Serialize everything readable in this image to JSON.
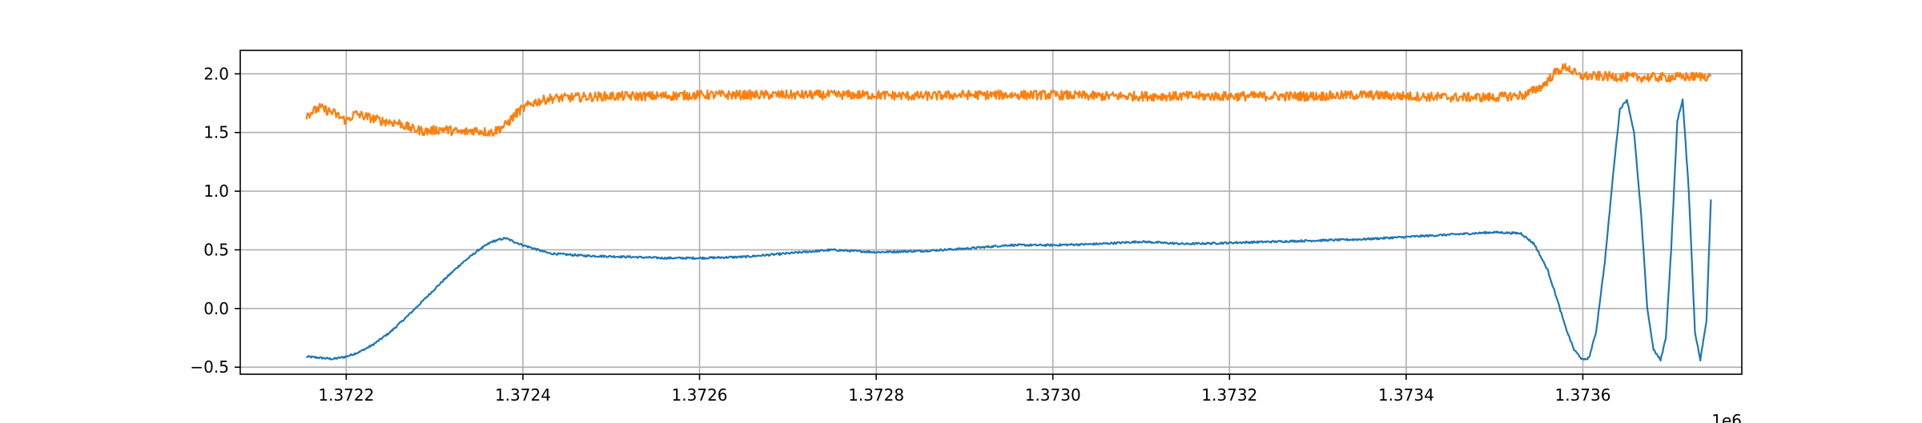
{
  "colors": {
    "series_1": "#1f77b4",
    "series_2": "#ff7f0e",
    "grid": "#b0b0b0",
    "axes": "#000000",
    "background": "#ffffff"
  },
  "chart_data": {
    "type": "line",
    "title": "",
    "xlabel": "",
    "ylabel": "",
    "x_offset_label": "1e6",
    "xlim": [
      1372080,
      1373780
    ],
    "ylim": [
      -0.56,
      2.2
    ],
    "grid": true,
    "legend": "none",
    "x_ticks": [
      1372200,
      1372400,
      1372600,
      1372800,
      1373000,
      1373200,
      1373400,
      1373600
    ],
    "x_tick_labels": [
      "1.3722",
      "1.3724",
      "1.3726",
      "1.3728",
      "1.3730",
      "1.3732",
      "1.3734",
      "1.3736"
    ],
    "y_ticks": [
      -0.5,
      0.0,
      0.5,
      1.0,
      1.5,
      2.0
    ],
    "y_tick_labels": [
      "−0.5",
      "0.0",
      "0.5",
      "1.0",
      "1.5",
      "2.0"
    ],
    "series": [
      {
        "color": "#1f77b4",
        "noise": 0.008,
        "x": [
          1372155,
          1372170,
          1372185,
          1372200,
          1372215,
          1372230,
          1372250,
          1372270,
          1372290,
          1372310,
          1372330,
          1372350,
          1372365,
          1372380,
          1372400,
          1372430,
          1372470,
          1372520,
          1372560,
          1372600,
          1372650,
          1372700,
          1372750,
          1372800,
          1372850,
          1372900,
          1372950,
          1373000,
          1373050,
          1373100,
          1373150,
          1373200,
          1373250,
          1373300,
          1373350,
          1373400,
          1373450,
          1373500,
          1373530,
          1373545,
          1373560,
          1373570,
          1373580,
          1373590,
          1373600,
          1373607,
          1373615,
          1373625,
          1373635,
          1373642,
          1373650,
          1373658,
          1373666,
          1373673,
          1373680,
          1373688,
          1373694,
          1373700,
          1373707,
          1373713,
          1373720,
          1373727,
          1373733,
          1373740,
          1373745
        ],
        "y": [
          -0.41,
          -0.42,
          -0.43,
          -0.41,
          -0.37,
          -0.31,
          -0.2,
          -0.06,
          0.09,
          0.24,
          0.38,
          0.5,
          0.57,
          0.6,
          0.54,
          0.47,
          0.45,
          0.44,
          0.43,
          0.43,
          0.44,
          0.47,
          0.5,
          0.48,
          0.49,
          0.51,
          0.54,
          0.54,
          0.55,
          0.57,
          0.55,
          0.56,
          0.57,
          0.58,
          0.59,
          0.61,
          0.63,
          0.65,
          0.64,
          0.55,
          0.33,
          0.1,
          -0.15,
          -0.35,
          -0.44,
          -0.42,
          -0.2,
          0.4,
          1.2,
          1.7,
          1.78,
          1.5,
          0.8,
          0.0,
          -0.35,
          -0.44,
          -0.25,
          0.5,
          1.6,
          1.78,
          1.0,
          -0.2,
          -0.44,
          -0.1,
          0.93
        ]
      },
      {
        "color": "#ff7f0e",
        "noise": 0.04,
        "x": [
          1372155,
          1372170,
          1372185,
          1372200,
          1372210,
          1372225,
          1372240,
          1372260,
          1372275,
          1372290,
          1372310,
          1372330,
          1372345,
          1372365,
          1372380,
          1372395,
          1372410,
          1372430,
          1372460,
          1372500,
          1372550,
          1372600,
          1372650,
          1372700,
          1372750,
          1372800,
          1372850,
          1372900,
          1372950,
          1373000,
          1373050,
          1373100,
          1373150,
          1373200,
          1373250,
          1373300,
          1373350,
          1373400,
          1373450,
          1373500,
          1373535,
          1373555,
          1373570,
          1373582,
          1373595,
          1373620,
          1373660,
          1373700,
          1373745
        ],
        "y": [
          1.65,
          1.71,
          1.67,
          1.6,
          1.66,
          1.63,
          1.6,
          1.58,
          1.53,
          1.51,
          1.53,
          1.5,
          1.52,
          1.5,
          1.56,
          1.68,
          1.75,
          1.79,
          1.8,
          1.81,
          1.81,
          1.82,
          1.82,
          1.82,
          1.82,
          1.82,
          1.81,
          1.82,
          1.82,
          1.82,
          1.81,
          1.81,
          1.81,
          1.81,
          1.81,
          1.81,
          1.82,
          1.81,
          1.8,
          1.8,
          1.82,
          1.9,
          2.02,
          2.06,
          1.98,
          1.98,
          1.97,
          1.97,
          1.98
        ]
      }
    ]
  }
}
